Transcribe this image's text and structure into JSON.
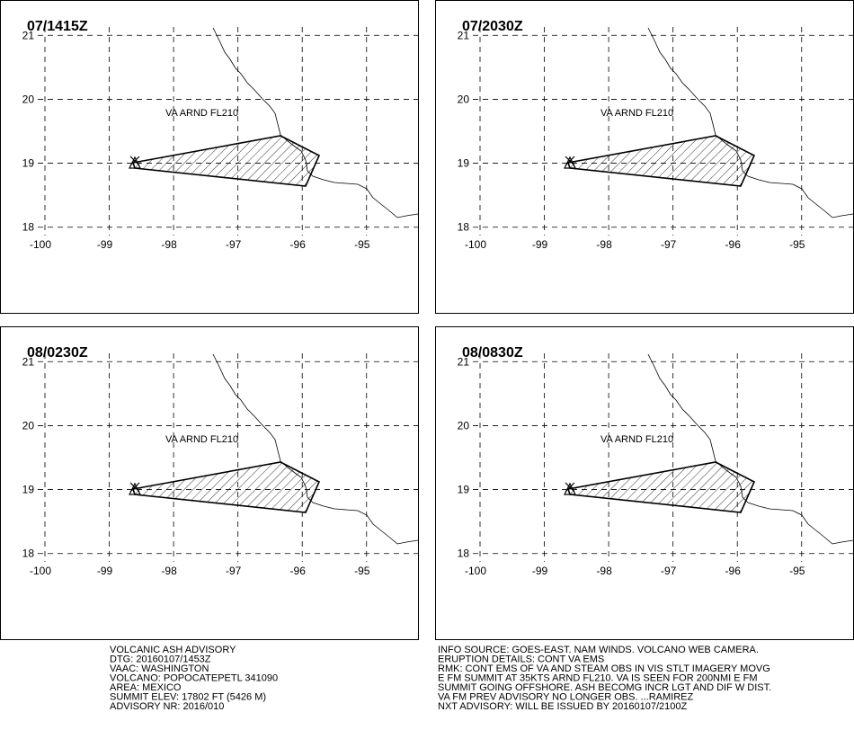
{
  "map": {
    "xlim": [
      -100,
      -94.2
    ],
    "ylim": [
      17.87,
      21.13
    ],
    "xticks": [
      -100,
      -99,
      -98,
      -97,
      -96,
      -95
    ],
    "yticks": [
      21,
      20,
      19,
      18
    ]
  },
  "panels": [
    {
      "time": "07/1415Z",
      "label": "VA ARND FL210"
    },
    {
      "time": "07/2030Z",
      "label": "VA ARND FL210"
    },
    {
      "time": "08/0230Z",
      "label": "VA ARND FL210"
    },
    {
      "time": "08/0830Z",
      "label": "VA ARND FL210"
    }
  ],
  "text_left": [
    "VOLCANIC ASH ADVISORY",
    "DTG: 20160107/1453Z",
    "VAAC: WASHINGTON",
    "VOLCANO: POPOCATEPETL 341090",
    "AREA: MEXICO",
    "SUMMIT ELEV: 17802 FT (5426 M)",
    "ADVISORY NR: 2016/010"
  ],
  "text_right": [
    "INFO SOURCE: GOES-EAST. NAM WINDS. VOLCANO WEB CAMERA.",
    "ERUPTION DETAILS: CONT VA EMS",
    "RMK: CONT EMS OF VA AND STEAM OBS IN VIS STLT IMAGERY MOVG",
    "E FM SUMMIT AT 35KTS ARND FL210. VA IS SEEN FOR 200NMI E FM",
    "SUMMIT GOING OFFSHORE. ASH BECOMG INCR LGT AND DIF W DIST.",
    "VA FM PREV ADVISORY NO LONGER OBS. ...RAMIREZ",
    "NXT ADVISORY: WILL BE ISSUED BY 20160107/2100Z"
  ]
}
